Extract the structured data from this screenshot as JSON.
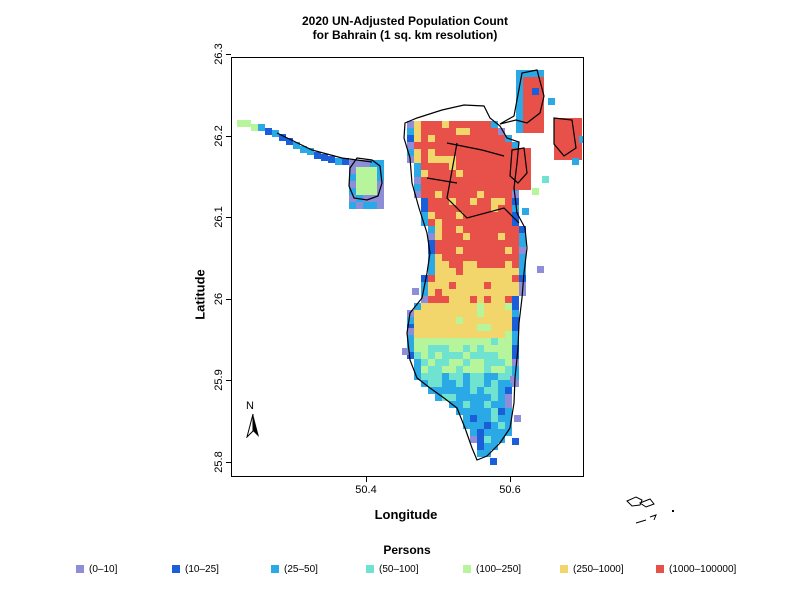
{
  "title": {
    "line1": "2020 UN-Adjusted Population Count",
    "line2": "for Bahrain (1 sq. km resolution)"
  },
  "axes": {
    "xlabel": "Longitude",
    "ylabel": "Latitude",
    "xticks": [
      "50.4",
      "50.6"
    ],
    "yticks": [
      "25.8",
      "25.9",
      "26",
      "26.1",
      "26.2",
      "26.3"
    ]
  },
  "north_arrow": {
    "label": "N"
  },
  "legend": {
    "title": "Persons",
    "items": [
      {
        "label": "(0–10]",
        "color": "#8d8dd8"
      },
      {
        "label": "(10–25]",
        "color": "#1a5fd9"
      },
      {
        "label": "(25–50]",
        "color": "#2ba8e6"
      },
      {
        "label": "(50–100]",
        "color": "#6fe3cf"
      },
      {
        "label": "(100–250]",
        "color": "#b6f59b"
      },
      {
        "label": "(250–1000]",
        "color": "#f2d66b"
      },
      {
        "label": "(1000–100000]",
        "color": "#e8504a"
      }
    ]
  },
  "map_data": {
    "region": "Bahrain",
    "lon_range": [
      50.22,
      50.72
    ],
    "lat_range": [
      25.78,
      26.31
    ]
  }
}
